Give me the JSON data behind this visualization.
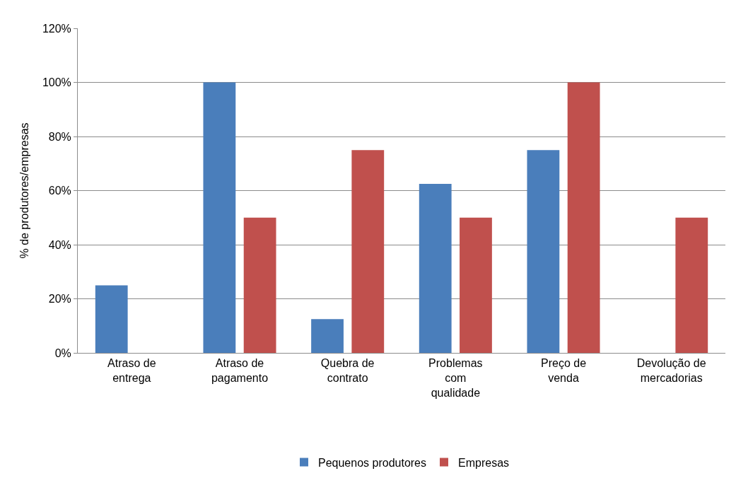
{
  "chart_data": {
    "type": "bar",
    "ylabel": "% de produtores/empresas",
    "categories": [
      "Atraso de\nentrega",
      "Atraso de\npagamento",
      "Quebra de\ncontrato",
      "Problemas\ncom\nqualidade",
      "Preço de\nvenda",
      "Devolução de\nmercadorias"
    ],
    "series": [
      {
        "name": "Pequenos produtores",
        "color": "#4a7ebb",
        "values": [
          25,
          100,
          12.5,
          62.5,
          75,
          0
        ]
      },
      {
        "name": "Empresas",
        "color": "#c0504d",
        "values": [
          0,
          50,
          75,
          50,
          100,
          50
        ]
      }
    ],
    "ylim": [
      0,
      120
    ],
    "yticks": [
      {
        "value": 0,
        "label": "0%"
      },
      {
        "value": 20,
        "label": "20%"
      },
      {
        "value": 40,
        "label": "40%"
      },
      {
        "value": 60,
        "label": "60%"
      },
      {
        "value": 80,
        "label": "80%"
      },
      {
        "value": 100,
        "label": "100%"
      },
      {
        "value": 120,
        "label": "120%"
      }
    ],
    "grid": "y",
    "legend": "bottom"
  }
}
